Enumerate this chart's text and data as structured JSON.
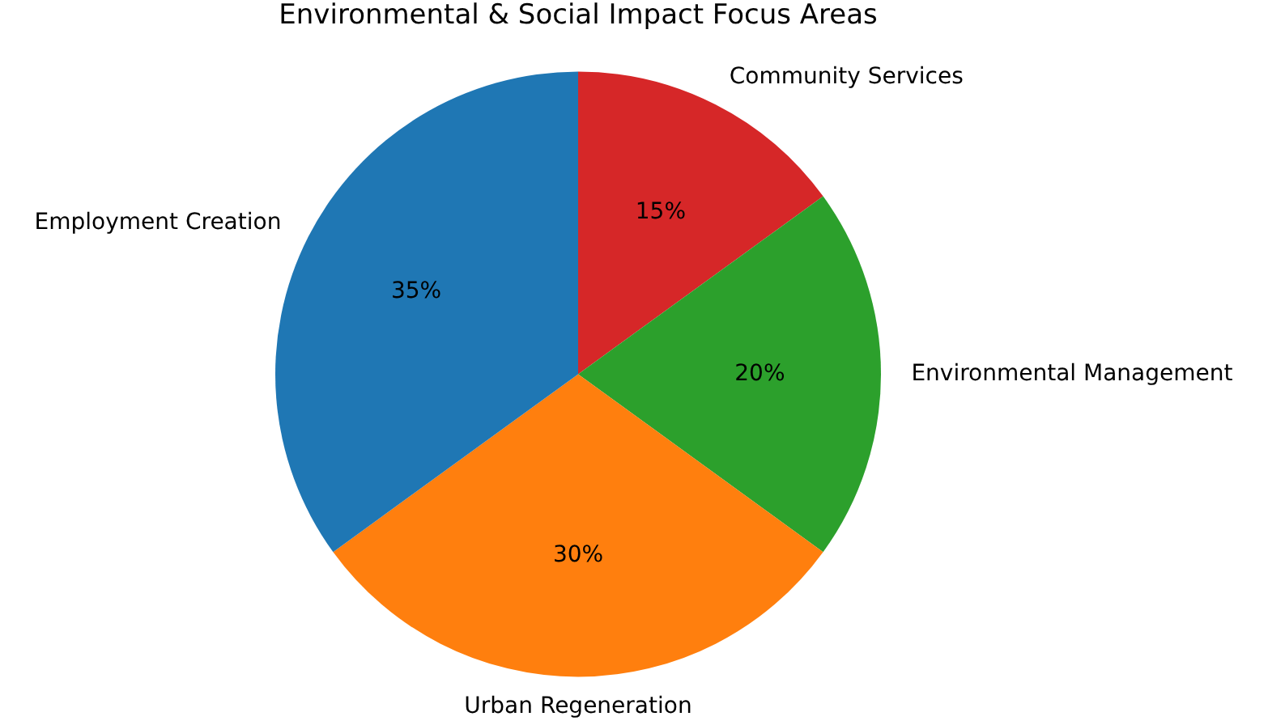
{
  "chart_data": {
    "type": "pie",
    "title": "Environmental & Social Impact Focus Areas",
    "categories": [
      "Employment Creation",
      "Urban Regeneration",
      "Environmental Management",
      "Community Services"
    ],
    "values": [
      35,
      30,
      20,
      15
    ],
    "colors": [
      "#1f77b4",
      "#ff7f0e",
      "#2ca02c",
      "#d62728"
    ],
    "value_labels": [
      "35%",
      "30%",
      "20%",
      "15%"
    ],
    "legend": false
  }
}
